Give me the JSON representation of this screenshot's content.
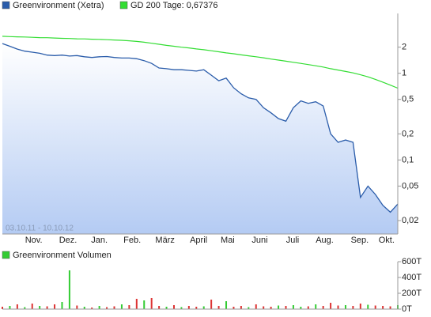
{
  "chart_data": [
    {
      "type": "line",
      "log_scale": true,
      "date_range": "03.10.11 - 10.10.12",
      "xlim": [
        0,
        53
      ],
      "xticks": [
        {
          "value": 4.2,
          "label": "Nov."
        },
        {
          "value": 8.8,
          "label": "Dez."
        },
        {
          "value": 13.0,
          "label": "Jan."
        },
        {
          "value": 17.4,
          "label": "Feb."
        },
        {
          "value": 21.8,
          "label": "März"
        },
        {
          "value": 26.3,
          "label": "April"
        },
        {
          "value": 30.2,
          "label": "Mai"
        },
        {
          "value": 34.5,
          "label": "Juni"
        },
        {
          "value": 38.9,
          "label": "Juli"
        },
        {
          "value": 43.2,
          "label": "Aug."
        },
        {
          "value": 47.9,
          "label": "Sep."
        },
        {
          "value": 51.5,
          "label": "Okt."
        }
      ],
      "ylim": [
        0.014,
        4.9
      ],
      "yticks": [
        2,
        1,
        {
          "value": 0.5,
          "label": "0,5"
        },
        {
          "value": 0.2,
          "label": "0,2"
        },
        {
          "value": 0.1,
          "label": "0,1"
        },
        {
          "value": 0.05,
          "label": "0,05"
        },
        {
          "value": 0.02,
          "label": "0,02"
        }
      ],
      "series": [
        {
          "name": "Greenvironment (Xetra)",
          "color": "#2a5caa",
          "values": [
            2.2,
            2.05,
            1.9,
            1.8,
            1.75,
            1.7,
            1.62,
            1.6,
            1.62,
            1.58,
            1.6,
            1.55,
            1.52,
            1.55,
            1.56,
            1.52,
            1.5,
            1.5,
            1.47,
            1.4,
            1.3,
            1.15,
            1.13,
            1.1,
            1.1,
            1.08,
            1.06,
            1.1,
            0.95,
            0.82,
            0.88,
            0.68,
            0.58,
            0.52,
            0.5,
            0.4,
            0.35,
            0.3,
            0.28,
            0.4,
            0.48,
            0.45,
            0.47,
            0.42,
            0.2,
            0.16,
            0.17,
            0.16,
            0.037,
            0.05,
            0.04,
            0.03,
            0.025,
            0.031
          ]
        },
        {
          "name": "GD 200 Tage: 0,67376",
          "color": "#33dd33",
          "values": [
            2.67,
            2.65,
            2.63,
            2.62,
            2.6,
            2.58,
            2.57,
            2.55,
            2.53,
            2.52,
            2.5,
            2.49,
            2.47,
            2.46,
            2.44,
            2.42,
            2.4,
            2.37,
            2.33,
            2.28,
            2.22,
            2.16,
            2.1,
            2.05,
            2.0,
            1.96,
            1.91,
            1.87,
            1.82,
            1.77,
            1.72,
            1.68,
            1.63,
            1.59,
            1.55,
            1.51,
            1.46,
            1.42,
            1.38,
            1.34,
            1.3,
            1.26,
            1.22,
            1.18,
            1.13,
            1.09,
            1.05,
            1.01,
            0.96,
            0.91,
            0.85,
            0.79,
            0.73,
            0.67376
          ]
        }
      ]
    },
    {
      "type": "bar",
      "title": "Greenvironment Volumen",
      "color": "#33cc33",
      "xlim": [
        0,
        53
      ],
      "ylim": [
        0,
        600000
      ],
      "yticks": [
        {
          "value": 600000,
          "label": "600T"
        },
        {
          "value": 400000,
          "label": "400T"
        },
        {
          "value": 200000,
          "label": "200T"
        },
        {
          "value": 0,
          "label": "0T"
        }
      ],
      "colors": [
        "#dd3333",
        "#33cc33",
        "#dd3333",
        "#33cc33",
        "#dd3333",
        "#33cc33",
        "#dd3333",
        "#dd3333",
        "#33cc33",
        "#33cc33",
        "#dd3333",
        "#33cc33",
        "#dd3333",
        "#33cc33",
        "#dd3333",
        "#dd3333",
        "#33cc33",
        "#dd3333",
        "#dd3333",
        "#33cc33",
        "#dd3333",
        "#dd3333",
        "#33cc33",
        "#dd3333",
        "#33cc33",
        "#dd3333",
        "#dd3333",
        "#33cc33",
        "#dd3333",
        "#dd3333",
        "#33cc33",
        "#dd3333",
        "#dd3333",
        "#33cc33",
        "#dd3333",
        "#dd3333",
        "#dd3333",
        "#33cc33",
        "#dd3333",
        "#33cc33",
        "#33cc33",
        "#dd3333",
        "#33cc33",
        "#dd3333",
        "#dd3333",
        "#dd3333",
        "#33cc33",
        "#dd3333",
        "#dd3333",
        "#33cc33",
        "#dd3333",
        "#dd3333",
        "#dd3333",
        "#33cc33"
      ],
      "values": [
        30000,
        40000,
        60000,
        25000,
        70000,
        40000,
        35000,
        60000,
        90000,
        490000,
        45000,
        30000,
        20000,
        40000,
        25000,
        35000,
        60000,
        50000,
        130000,
        110000,
        140000,
        40000,
        30000,
        50000,
        25000,
        40000,
        30000,
        35000,
        120000,
        40000,
        100000,
        30000,
        40000,
        25000,
        60000,
        35000,
        30000,
        45000,
        40000,
        50000,
        30000,
        35000,
        60000,
        40000,
        80000,
        45000,
        50000,
        40000,
        70000,
        55000,
        45000,
        40000,
        35000,
        50000
      ]
    }
  ]
}
